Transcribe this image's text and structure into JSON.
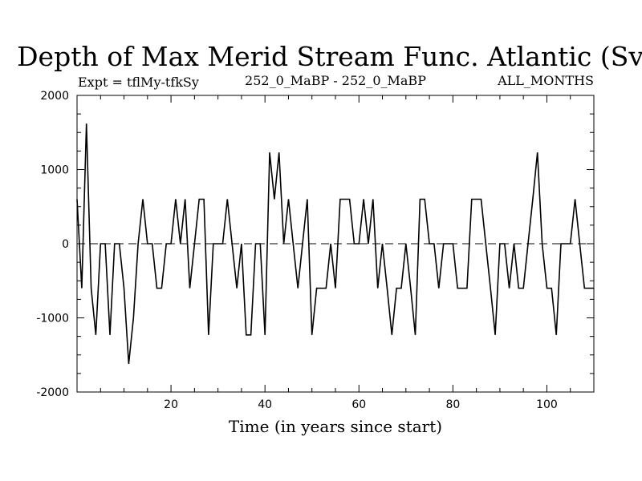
{
  "chart_data": {
    "type": "line",
    "title": "Depth of Max Merid Stream Func. Atlantic (Sv)",
    "subtitle_left": "Expt = tflMy-tfkSy",
    "subtitle_center": "252_0_MaBP - 252_0_MaBP",
    "subtitle_right": "ALL_MONTHS",
    "xlabel": "Time (in years since start)",
    "ylabel": "",
    "xlim": [
      0,
      110
    ],
    "ylim": [
      -2000,
      2000
    ],
    "xticks": [
      20,
      40,
      60,
      80,
      100
    ],
    "xtick_labels": [
      "20",
      "40",
      "60",
      "80",
      "100"
    ],
    "yticks": [
      -2000,
      -1000,
      0,
      1000,
      2000
    ],
    "ytick_labels": [
      "-2000",
      "-1000",
      "0",
      "1000",
      "2000"
    ],
    "zero_line": "dashed",
    "series": [
      {
        "name": "depth",
        "x": [
          0,
          1,
          2,
          3,
          4,
          5,
          6,
          7,
          8,
          9,
          10,
          11,
          12,
          13,
          14,
          15,
          16,
          17,
          18,
          19,
          20,
          21,
          22,
          23,
          24,
          25,
          26,
          27,
          28,
          29,
          30,
          31,
          32,
          33,
          34,
          35,
          36,
          37,
          38,
          39,
          40,
          41,
          42,
          43,
          44,
          45,
          46,
          47,
          48,
          49,
          50,
          51,
          52,
          53,
          54,
          55,
          56,
          57,
          58,
          59,
          60,
          61,
          62,
          63,
          64,
          65,
          66,
          67,
          68,
          69,
          70,
          71,
          72,
          73,
          74,
          75,
          76,
          77,
          78,
          79,
          80,
          81,
          82,
          83,
          84,
          85,
          86,
          87,
          88,
          89,
          90,
          91,
          92,
          93,
          94,
          95,
          96,
          97,
          98,
          99,
          100,
          101,
          102,
          103,
          104,
          105,
          106,
          107,
          108,
          109,
          110
        ],
        "values": [
          600,
          -600,
          1620,
          -600,
          -1230,
          0,
          0,
          -1230,
          0,
          0,
          -600,
          -1620,
          -1000,
          0,
          600,
          0,
          0,
          -600,
          -600,
          0,
          0,
          600,
          0,
          600,
          -600,
          0,
          600,
          600,
          -1230,
          0,
          0,
          0,
          600,
          0,
          -600,
          0,
          -1230,
          -1230,
          0,
          0,
          -1230,
          1230,
          600,
          1230,
          0,
          600,
          0,
          -600,
          0,
          600,
          -1230,
          -600,
          -600,
          -600,
          0,
          -600,
          600,
          600,
          600,
          0,
          0,
          600,
          0,
          600,
          -600,
          0,
          -600,
          -1230,
          -600,
          -600,
          0,
          -600,
          -1230,
          600,
          600,
          0,
          0,
          -600,
          0,
          0,
          0,
          -600,
          -600,
          -600,
          600,
          600,
          600,
          0,
          -600,
          -1230,
          0,
          0,
          -600,
          0,
          -600,
          -600,
          0,
          600,
          1230,
          0,
          -600,
          -600,
          -1230,
          0,
          0,
          0,
          600,
          0,
          -600,
          -600,
          -600
        ]
      }
    ]
  }
}
